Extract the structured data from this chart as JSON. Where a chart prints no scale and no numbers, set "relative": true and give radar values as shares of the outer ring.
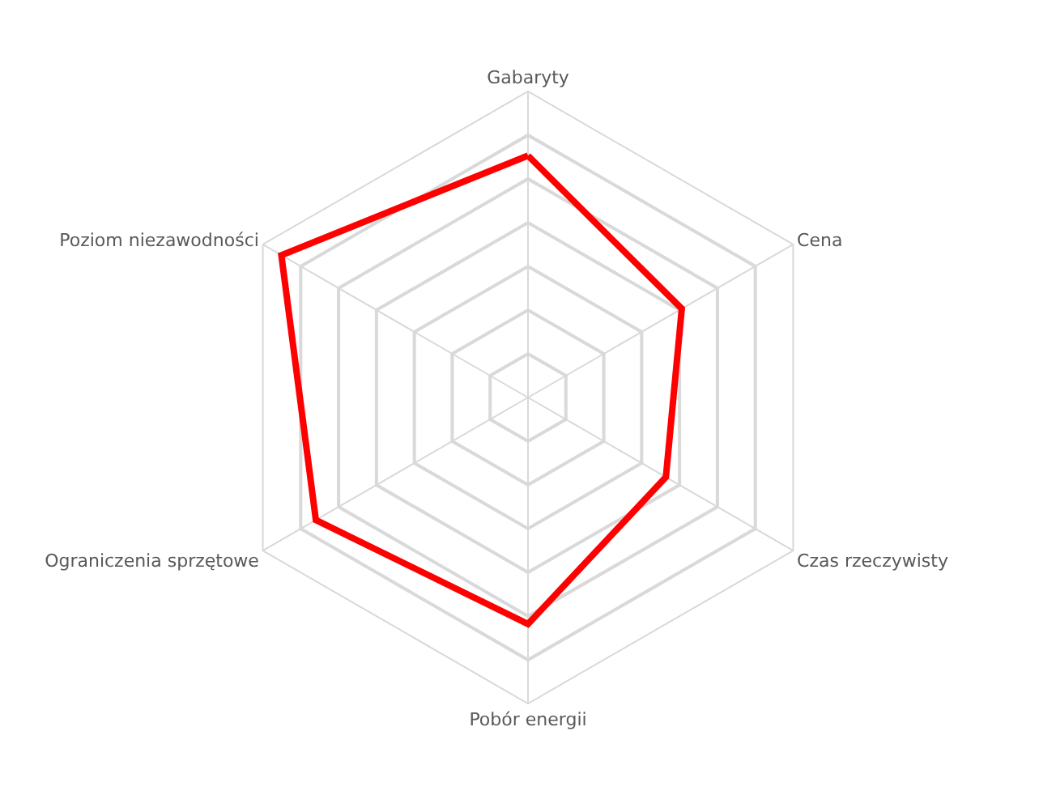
{
  "chart_data": {
    "type": "radar",
    "relative": true,
    "categories": [
      "Gabaryty",
      "Cena",
      "Czas rzeczywisty",
      "Pobór energii",
      "Ograniczenia sprzętowe",
      "Poziom niezawodności"
    ],
    "series": [
      {
        "color": "#ff0000",
        "values": [
          0.79,
          0.58,
          0.52,
          0.74,
          0.8,
          0.93
        ]
      }
    ],
    "marker": "none",
    "line_style": "solid"
  }
}
